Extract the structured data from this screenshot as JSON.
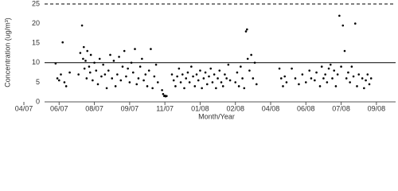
{
  "chart_data": {
    "type": "scatter",
    "y_label": "Concentration (ug/m³)",
    "x_label": "Month/Year",
    "xlim": [
      0,
      10.5
    ],
    "xticks": [
      {
        "value": 0,
        "label": "04/07"
      },
      {
        "value": 1,
        "label": "06/07"
      },
      {
        "value": 2,
        "label": "08/07"
      },
      {
        "value": 3,
        "label": "09/07"
      },
      {
        "value": 4,
        "label": "11/07"
      },
      {
        "value": 5,
        "label": "01/08"
      },
      {
        "value": 6,
        "label": "02/08"
      },
      {
        "value": 7,
        "label": "04/08"
      },
      {
        "value": 8,
        "label": "06/08"
      },
      {
        "value": 9,
        "label": "07/08"
      },
      {
        "value": 10,
        "label": "09/08"
      }
    ],
    "ylim": [
      0,
      25
    ],
    "yticks": [
      0,
      5,
      10,
      15,
      20,
      25
    ],
    "reference_lines": [
      {
        "value": 10,
        "style": "solid"
      },
      {
        "value": 25,
        "style": "dashed"
      }
    ],
    "color": "#000000",
    "x": [
      0.9,
      0.95,
      1.0,
      1.05,
      1.1,
      1.15,
      1.2,
      1.3,
      1.55,
      1.6,
      1.65,
      1.68,
      1.7,
      1.72,
      1.75,
      1.78,
      1.8,
      1.85,
      1.88,
      1.9,
      1.95,
      2.0,
      2.05,
      2.1,
      2.15,
      2.2,
      2.25,
      2.3,
      2.35,
      2.4,
      2.45,
      2.5,
      2.55,
      2.6,
      2.65,
      2.7,
      2.75,
      2.8,
      2.85,
      2.9,
      2.95,
      3.0,
      3.05,
      3.1,
      3.15,
      3.2,
      3.25,
      3.3,
      3.35,
      3.4,
      3.45,
      3.5,
      3.55,
      3.6,
      3.65,
      3.7,
      3.75,
      3.8,
      3.92,
      3.95,
      3.98,
      4.0,
      4.02,
      4.05,
      4.2,
      4.25,
      4.3,
      4.35,
      4.4,
      4.45,
      4.5,
      4.55,
      4.6,
      4.65,
      4.7,
      4.75,
      4.8,
      4.85,
      4.9,
      4.95,
      5.0,
      5.05,
      5.1,
      5.15,
      5.2,
      5.25,
      5.3,
      5.35,
      5.4,
      5.45,
      5.5,
      5.55,
      5.6,
      5.65,
      5.7,
      5.75,
      5.8,
      5.85,
      6.0,
      6.05,
      6.1,
      6.15,
      6.2,
      6.25,
      6.3,
      6.33,
      6.35,
      6.4,
      6.45,
      6.5,
      6.55,
      6.6,
      7.25,
      7.3,
      7.35,
      7.4,
      7.45,
      7.6,
      7.7,
      7.8,
      7.9,
      8.0,
      8.1,
      8.15,
      8.25,
      8.3,
      8.4,
      8.45,
      8.5,
      8.55,
      8.6,
      8.65,
      8.7,
      8.75,
      8.8,
      8.85,
      8.9,
      8.95,
      9.0,
      9.05,
      9.1,
      9.15,
      9.2,
      9.25,
      9.3,
      9.35,
      9.4,
      9.45,
      9.5,
      9.6,
      9.65,
      9.7,
      9.75,
      9.8,
      9.85
    ],
    "values": [
      9.8,
      6,
      5.5,
      7,
      15.2,
      5,
      4,
      7.5,
      7,
      12.5,
      19.5,
      11,
      14,
      8.5,
      10.5,
      6,
      13,
      9,
      7.5,
      12,
      5.5,
      10,
      8,
      4.5,
      11,
      6.5,
      9.5,
      7,
      3.5,
      8,
      12,
      6,
      10.5,
      4,
      7,
      11.5,
      5.5,
      9,
      13,
      6.5,
      8.5,
      5,
      10,
      7.5,
      13.5,
      4.5,
      6,
      9,
      11,
      5.5,
      7,
      4,
      8,
      13.5,
      3.5,
      6.5,
      9.5,
      5,
      3,
      2,
      1.5,
      1.6,
      1.4,
      1.5,
      7,
      5.5,
      4,
      6.5,
      8.5,
      5,
      7,
      3.5,
      6,
      7.5,
      5,
      9,
      6.5,
      4,
      7,
      5.5,
      8,
      3.5,
      6,
      7.5,
      4.5,
      6.5,
      8.5,
      5,
      7,
      3.5,
      6,
      8,
      5,
      4,
      7,
      6,
      9.5,
      5.5,
      5,
      7.5,
      4,
      9,
      6,
      3.5,
      18,
      18.5,
      11,
      8,
      12,
      6,
      10,
      4.5,
      8.5,
      6,
      4,
      6.5,
      5,
      8.5,
      6,
      4.5,
      7,
      5,
      8,
      6,
      5.5,
      7.5,
      4,
      9,
      6,
      7,
      5,
      8.5,
      9.5,
      6,
      8,
      4,
      7,
      22,
      9,
      19.5,
      13,
      6,
      7.5,
      5,
      9,
      6.5,
      20,
      4,
      7,
      6,
      3.5,
      5.5,
      7,
      4.5,
      6
    ]
  }
}
